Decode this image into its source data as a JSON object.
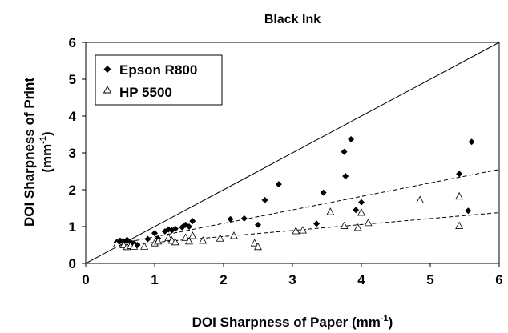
{
  "chart_data": {
    "type": "scatter",
    "title": "Black Ink",
    "xlabel": "DOI Sharpness of Paper (mm",
    "xlabel_sup": "-1",
    "xlabel_end": ")",
    "ylabel_line1": "DOI Sharpness of Print",
    "ylabel_line2": "(mm",
    "ylabel_sup": "-1",
    "ylabel_end": ")",
    "xlim": [
      0,
      6
    ],
    "ylim": [
      0,
      6
    ],
    "xticks": [
      "0",
      "1",
      "2",
      "3",
      "4",
      "5",
      "6"
    ],
    "yticks": [
      "0",
      "1",
      "2",
      "3",
      "4",
      "5",
      "6"
    ],
    "grid": false,
    "legend_position": "top-left",
    "reference_line": {
      "type": "y=x",
      "style": "solid"
    },
    "series": [
      {
        "name": "Epson R800",
        "marker": "filled-diamond",
        "trendline": {
          "style": "dashed",
          "x": [
            0.45,
            6.0
          ],
          "y": [
            0.52,
            2.55
          ]
        },
        "points": [
          [
            0.45,
            0.58
          ],
          [
            0.5,
            0.62
          ],
          [
            0.55,
            0.6
          ],
          [
            0.6,
            0.64
          ],
          [
            0.65,
            0.58
          ],
          [
            0.7,
            0.55
          ],
          [
            0.75,
            0.5
          ],
          [
            0.9,
            0.66
          ],
          [
            1.0,
            0.82
          ],
          [
            1.05,
            0.68
          ],
          [
            1.15,
            0.87
          ],
          [
            1.2,
            0.92
          ],
          [
            1.25,
            0.9
          ],
          [
            1.3,
            0.94
          ],
          [
            1.4,
            0.98
          ],
          [
            1.45,
            1.05
          ],
          [
            1.5,
            1.0
          ],
          [
            1.55,
            1.15
          ],
          [
            2.1,
            1.2
          ],
          [
            2.3,
            1.22
          ],
          [
            2.5,
            1.05
          ],
          [
            2.6,
            1.72
          ],
          [
            2.8,
            2.15
          ],
          [
            3.35,
            1.08
          ],
          [
            3.45,
            1.92
          ],
          [
            3.75,
            3.03
          ],
          [
            3.77,
            2.37
          ],
          [
            3.85,
            3.37
          ],
          [
            3.92,
            1.45
          ],
          [
            4.0,
            1.66
          ],
          [
            5.42,
            2.43
          ],
          [
            5.55,
            1.43
          ],
          [
            5.6,
            3.3
          ]
        ]
      },
      {
        "name": "HP 5500",
        "marker": "open-triangle",
        "trendline": {
          "style": "dashed",
          "x": [
            0.45,
            6.0
          ],
          "y": [
            0.48,
            1.38
          ]
        },
        "points": [
          [
            0.45,
            0.52
          ],
          [
            0.55,
            0.5
          ],
          [
            0.6,
            0.45
          ],
          [
            0.65,
            0.48
          ],
          [
            0.7,
            0.46
          ],
          [
            0.85,
            0.46
          ],
          [
            1.0,
            0.55
          ],
          [
            1.05,
            0.6
          ],
          [
            1.2,
            0.7
          ],
          [
            1.25,
            0.62
          ],
          [
            1.3,
            0.58
          ],
          [
            1.45,
            0.7
          ],
          [
            1.5,
            0.6
          ],
          [
            1.55,
            0.75
          ],
          [
            1.7,
            0.62
          ],
          [
            1.95,
            0.68
          ],
          [
            2.15,
            0.75
          ],
          [
            2.45,
            0.55
          ],
          [
            2.5,
            0.45
          ],
          [
            3.05,
            0.88
          ],
          [
            3.15,
            0.9
          ],
          [
            3.55,
            1.4
          ],
          [
            3.75,
            1.02
          ],
          [
            3.95,
            0.97
          ],
          [
            4.0,
            1.38
          ],
          [
            4.1,
            1.1
          ],
          [
            4.85,
            1.72
          ],
          [
            5.42,
            1.82
          ],
          [
            5.42,
            1.02
          ]
        ]
      }
    ]
  }
}
